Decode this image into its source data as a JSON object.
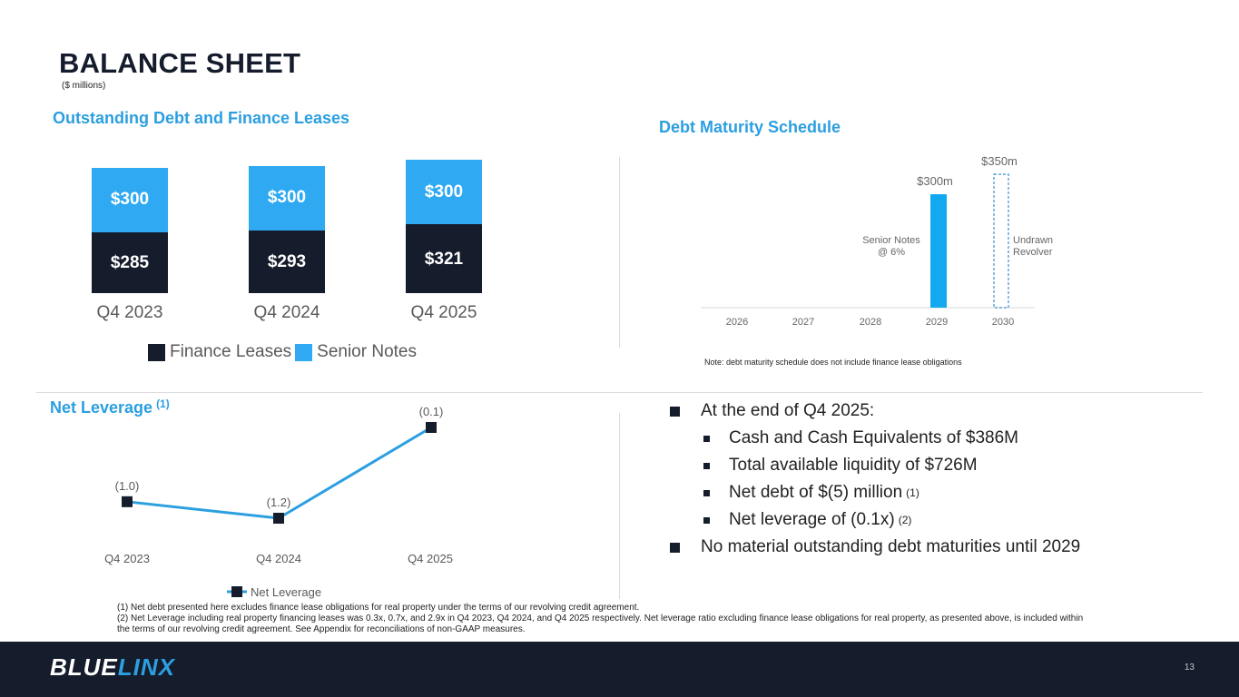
{
  "header": {
    "title": "BALANCE SHEET",
    "subtitle": "($ millions)"
  },
  "debt_section": {
    "title": "Outstanding Debt and Finance Leases"
  },
  "maturity_section": {
    "title": "Debt Maturity Schedule",
    "note": "Note: debt maturity schedule does not include finance lease obligations",
    "senior_label_line1": "Senior Notes",
    "senior_label_line2": "@ 6%",
    "revolver_label_line1": "Undrawn",
    "revolver_label_line2": "Revolver"
  },
  "leverage_section": {
    "title": "Net Leverage",
    "title_sup": "(1)"
  },
  "colors": {
    "navy": "#151c2c",
    "blue": "#2ea9f2",
    "accent": "#2c9fe0"
  },
  "chart_data": [
    {
      "type": "bar",
      "stacked": true,
      "title": "Outstanding Debt and Finance Leases",
      "categories": [
        "Q4 2023",
        "Q4 2024",
        "Q4 2025"
      ],
      "series": [
        {
          "name": "Finance Leases",
          "values": [
            285,
            293,
            321
          ],
          "labels": [
            "$285",
            "$293",
            "$321"
          ],
          "color": "#151c2c"
        },
        {
          "name": "Senior Notes",
          "values": [
            300,
            300,
            300
          ],
          "labels": [
            "$300",
            "$300",
            "$300"
          ],
          "color": "#2ea9f2"
        }
      ],
      "legend": [
        "Finance Leases",
        "Senior Notes"
      ],
      "legend_position": "bottom"
    },
    {
      "type": "bar",
      "title": "Debt Maturity Schedule",
      "categories": [
        "2026",
        "2027",
        "2028",
        "2029",
        "2030"
      ],
      "series": [
        {
          "name": "Senior Notes @ 6%",
          "values": [
            0,
            0,
            0,
            300,
            0
          ],
          "label": "$300m"
        },
        {
          "name": "Undrawn Revolver",
          "values": [
            0,
            0,
            0,
            0,
            350
          ],
          "label": "$350m",
          "style": "dashed-outline"
        }
      ]
    },
    {
      "type": "line",
      "title": "Net Leverage",
      "categories": [
        "Q4 2023",
        "Q4 2024",
        "Q4 2025"
      ],
      "series": [
        {
          "name": "Net Leverage",
          "values": [
            -1.0,
            -1.2,
            -0.1
          ],
          "labels": [
            "(1.0)",
            "(1.2)",
            "(0.1)"
          ]
        }
      ],
      "legend": [
        "Net Leverage"
      ],
      "legend_position": "bottom"
    }
  ],
  "bullets": [
    {
      "level": 1,
      "text": "At the end of Q4 2025:",
      "sup": ""
    },
    {
      "level": 2,
      "text": "Cash and Cash Equivalents of $386M",
      "sup": ""
    },
    {
      "level": 2,
      "text": "Total available liquidity of $726M",
      "sup": ""
    },
    {
      "level": 2,
      "text": "Net debt of $(5) million",
      "sup": "(1)"
    },
    {
      "level": 2,
      "text": "Net leverage of (0.1x)",
      "sup": "(2)"
    },
    {
      "level": 1,
      "text": "No material outstanding debt maturities until 2029",
      "sup": ""
    }
  ],
  "footnotes": [
    "(1)  Net debt presented here excludes finance lease obligations for real property under the terms of our revolving credit agreement.",
    "(2)  Net Leverage including real property financing leases was 0.3x, 0.7x, and 2.9x in Q4 2023, Q4 2024, and Q4 2025 respectively.  Net leverage ratio excluding finance lease obligations for real property, as presented above, is included within the terms of our revolving credit agreement.  See Appendix for reconciliations of non-GAAP measures."
  ],
  "footer": {
    "logo_part1": "BLUE",
    "logo_part2": "LINX",
    "page_number": "13"
  }
}
